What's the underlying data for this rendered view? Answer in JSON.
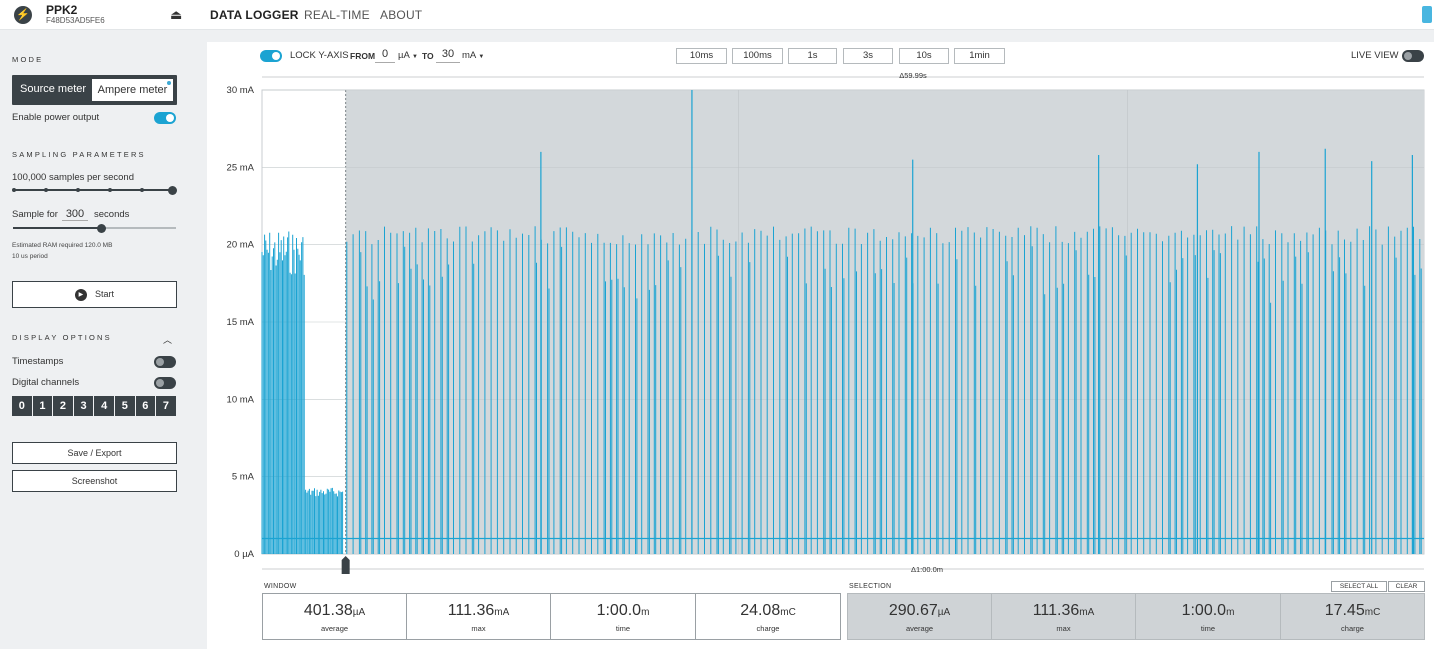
{
  "header": {
    "device_name": "PPK2",
    "device_serial": "F48D53AD5FE6",
    "tabs": [
      {
        "label": "DATA LOGGER",
        "active": true
      },
      {
        "label": "REAL-TIME",
        "active": false
      },
      {
        "label": "ABOUT",
        "active": false
      }
    ]
  },
  "sidebar": {
    "mode_title": "MODE",
    "mode_source": "Source meter",
    "mode_ampere": "Ampere meter",
    "enable_power_label": "Enable power output",
    "enable_power_on": true,
    "sampling_title": "SAMPLING PARAMETERS",
    "samples_rate": "100,000 samples per second",
    "sample_for_label": "Sample for",
    "sample_for_value": "300",
    "sample_for_unit": "seconds",
    "ram_estimate": "Estimated RAM required 120.0 MB",
    "period": "10 us period",
    "start_label": "Start",
    "display_title": "DISPLAY OPTIONS",
    "timestamps_label": "Timestamps",
    "timestamps_on": false,
    "digital_label": "Digital channels",
    "digital_on": false,
    "channels": [
      "0",
      "1",
      "2",
      "3",
      "4",
      "5",
      "6",
      "7"
    ],
    "save_label": "Save / Export",
    "screenshot_label": "Screenshot"
  },
  "controls": {
    "lock_y_label": "LOCK Y-AXIS",
    "lock_y_on": true,
    "from_label": "FROM",
    "from_value": "0",
    "from_unit": "µA",
    "to_label": "TO",
    "to_value": "30",
    "to_unit": "mA",
    "ranges": [
      "10ms",
      "100ms",
      "1s",
      "3s",
      "10s",
      "1min"
    ],
    "live_view_label": "LIVE VIEW",
    "live_view_on": false
  },
  "chart_data": {
    "type": "line",
    "y_unit_labels": [
      "0 µA",
      "5 mA",
      "10 mA",
      "15 mA",
      "20 mA",
      "25 mA",
      "30 mA"
    ],
    "ylim": [
      0,
      30
    ],
    "y_unit": "mA",
    "top_delta": "Δ59.99s",
    "bottom_delta": "Δ1:00.0m",
    "selection_start_fraction": 0.072,
    "series": [
      {
        "color": "#1ba3d2",
        "baseline_ma": 1.0,
        "initial_burst": {
          "until_fraction": 0.07,
          "peak_ma": 21.0,
          "plateau_ma": 4.3
        },
        "pulse_ma": 21.2,
        "tall_spikes": [
          {
            "x_fraction": 0.24,
            "value_ma": 26.0
          },
          {
            "x_fraction": 0.37,
            "value_ma": 30.0
          },
          {
            "x_fraction": 0.56,
            "value_ma": 25.5
          },
          {
            "x_fraction": 0.72,
            "value_ma": 25.8
          },
          {
            "x_fraction": 0.805,
            "value_ma": 25.2
          },
          {
            "x_fraction": 0.858,
            "value_ma": 26.0
          },
          {
            "x_fraction": 0.915,
            "value_ma": 26.2
          },
          {
            "x_fraction": 0.955,
            "value_ma": 25.4
          },
          {
            "x_fraction": 0.99,
            "value_ma": 25.8
          }
        ]
      }
    ]
  },
  "window_stats": {
    "title": "WINDOW",
    "items": [
      {
        "value": "401.38",
        "unit": "µA",
        "caption": "average"
      },
      {
        "value": "111.36",
        "unit": "mA",
        "caption": "max"
      },
      {
        "value": "1:00.0",
        "unit": "m",
        "caption": "time"
      },
      {
        "value": "24.08",
        "unit": "mC",
        "caption": "charge"
      }
    ]
  },
  "selection_stats": {
    "title": "SELECTION",
    "select_all_label": "SELECT ALL",
    "clear_label": "CLEAR",
    "items": [
      {
        "value": "290.67",
        "unit": "µA",
        "caption": "average"
      },
      {
        "value": "111.36",
        "unit": "mA",
        "caption": "max"
      },
      {
        "value": "1:00.0",
        "unit": "m",
        "caption": "time"
      },
      {
        "value": "17.45",
        "unit": "mC",
        "caption": "charge"
      }
    ]
  }
}
